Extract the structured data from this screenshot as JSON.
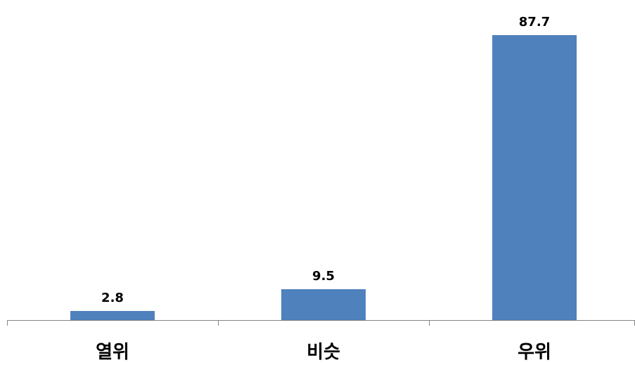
{
  "chart_data": {
    "type": "bar",
    "categories": [
      "열위",
      "비슷",
      "우위"
    ],
    "values": [
      2.8,
      9.5,
      87.7
    ],
    "data_labels": [
      "2.8",
      "9.5",
      "87.7"
    ],
    "title": "",
    "xlabel": "",
    "ylabel": "",
    "ylim": [
      0,
      87.7
    ],
    "grid": false,
    "legend": "none",
    "bar_color": "#4F81BD",
    "axis_color": "#868686"
  }
}
